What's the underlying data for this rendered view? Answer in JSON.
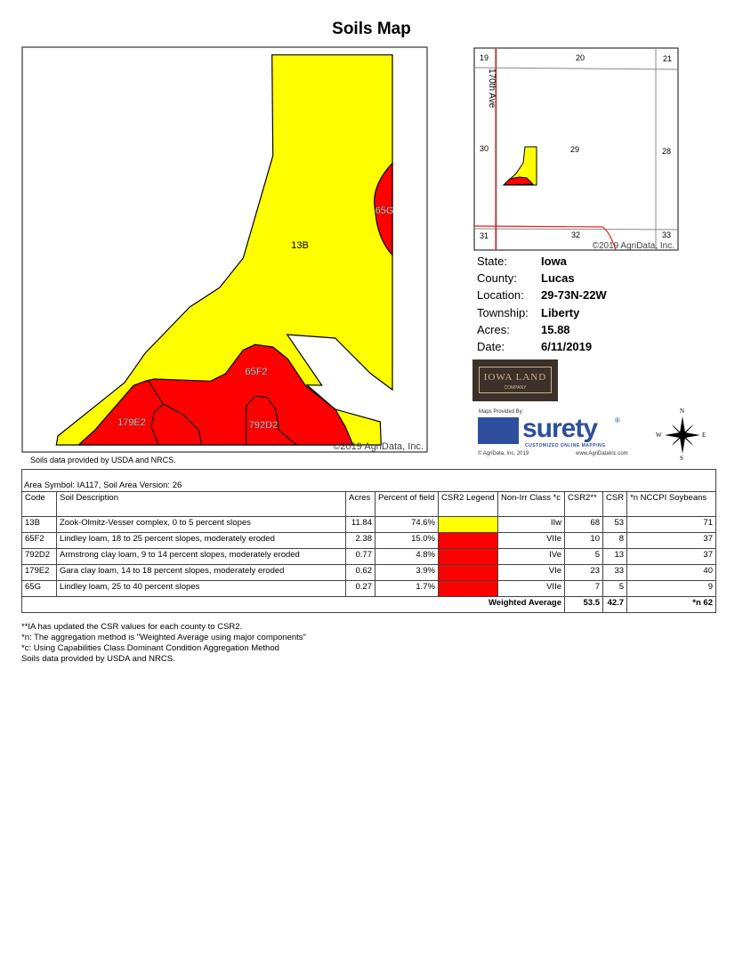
{
  "title": "Soils Map",
  "map": {
    "labels": [
      "13B",
      "65G",
      "65F2",
      "179E2",
      "792D2"
    ],
    "copyright": "©2019 AgriData, Inc.",
    "source_note": "Soils data provided by USDA and NRCS.",
    "colors": {
      "13B": "#ffff00",
      "65F2": "#ff0000",
      "65G": "#ff0000",
      "179E2": "#ff0000",
      "792D2": "#ff0000"
    }
  },
  "inset": {
    "sections": [
      "19",
      "20",
      "21",
      "30",
      "29",
      "28",
      "31",
      "32",
      "33"
    ],
    "road": "170th Ave",
    "copyright": "©2019 AgriData, Inc."
  },
  "info": [
    {
      "label": "State:",
      "value": "Iowa"
    },
    {
      "label": "County:",
      "value": "Lucas"
    },
    {
      "label": "Location:",
      "value": "29-73N-22W"
    },
    {
      "label": "Township:",
      "value": "Liberty"
    },
    {
      "label": "Acres:",
      "value": "15.88"
    },
    {
      "label": "Date:",
      "value": "6/11/2019"
    }
  ],
  "logos": {
    "iowa_land": {
      "line1": "IOWA LAND",
      "line2": "COMPANY"
    },
    "surety": {
      "provided": "Maps Provided By:",
      "word": "surety",
      "reg": "®",
      "tagline": "CUSTOMIZED ONLINE MAPPING",
      "copyright": "© AgriData, Inc. 2019",
      "url": "www.AgriDataInc.com"
    },
    "compass": {
      "n": "N",
      "s": "S",
      "e": "E",
      "w": "W"
    }
  },
  "table": {
    "area": "Area Symbol: IA117, Soil Area Version: 26",
    "headers": [
      "Code",
      "Soil Description",
      "Acres",
      "Percent of field",
      "CSR2 Legend",
      "Non-Irr Class *c",
      "CSR2**",
      "CSR",
      "*n NCCPI Soybeans"
    ],
    "rows": [
      {
        "code": "13B",
        "desc": "Zook-Olmitz-Vesser complex, 0 to 5 percent slopes",
        "acres": "11.84",
        "pct": "74.6%",
        "color": "yellow",
        "cls": "IIw",
        "csr2": "68",
        "csr": "53",
        "nccpi": "71"
      },
      {
        "code": "65F2",
        "desc": "Lindley loam, 18 to 25 percent slopes, moderately eroded",
        "acres": "2.38",
        "pct": "15.0%",
        "color": "red",
        "cls": "VIIe",
        "csr2": "10",
        "csr": "8",
        "nccpi": "37"
      },
      {
        "code": "792D2",
        "desc": "Armstrong clay loam, 9 to 14 percent slopes, moderately eroded",
        "acres": "0.77",
        "pct": "4.8%",
        "color": "red",
        "cls": "IVe",
        "csr2": "5",
        "csr": "13",
        "nccpi": "37"
      },
      {
        "code": "179E2",
        "desc": "Gara clay loam, 14 to 18 percent slopes, moderately eroded",
        "acres": "0.62",
        "pct": "3.9%",
        "color": "red",
        "cls": "VIe",
        "csr2": "23",
        "csr": "33",
        "nccpi": "40"
      },
      {
        "code": "65G",
        "desc": "Lindley loam, 25 to 40 percent slopes",
        "acres": "0.27",
        "pct": "1.7%",
        "color": "red",
        "cls": "VIIe",
        "csr2": "7",
        "csr": "5",
        "nccpi": "9"
      }
    ],
    "weighted": {
      "label": "Weighted Average",
      "csr2": "53.5",
      "csr": "42.7",
      "nccpi": "*n 62"
    }
  },
  "notes": [
    "**IA has updated the CSR values for each county to CSR2.",
    "*n: The aggregation method is \"Weighted Average using major components\"",
    "*c: Using Capabilities Class Dominant Condition Aggregation Method",
    "Soils data provided by USDA and NRCS."
  ]
}
